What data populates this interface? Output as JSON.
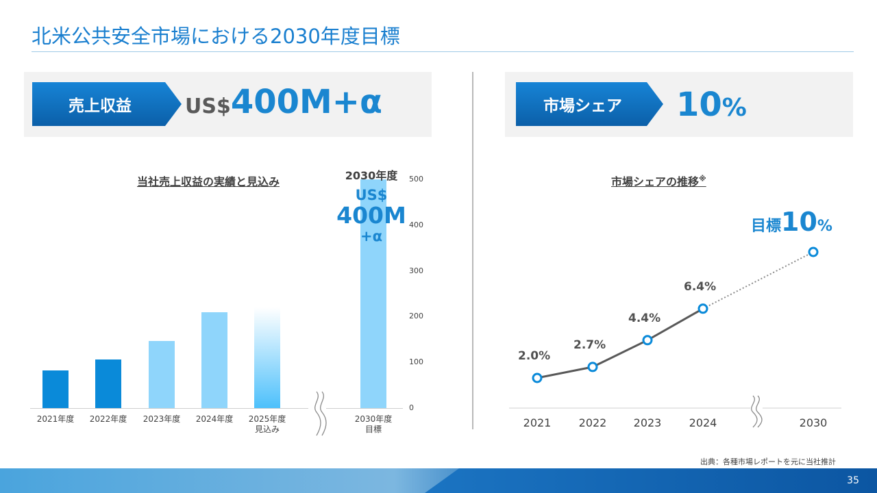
{
  "slide": {
    "title": "北米公共安全市場における2030年度目標",
    "page_number": "35",
    "source": "出典：各種市場レポートを元に当社推計"
  },
  "left_panel": {
    "label": "売上収益",
    "value_prefix": "US$",
    "value": "400M+α"
  },
  "right_panel": {
    "label": "市場シェア",
    "value": "10",
    "unit": "%"
  },
  "revenue_chart": {
    "title": "当社売上収益の実績と見込み",
    "callout_year": "2030年度",
    "callout_line1": "US$",
    "callout_line2": "400M",
    "callout_line3": "+α"
  },
  "share_chart": {
    "title": "市場シェアの推移",
    "title_mark": "※",
    "target_label": "目標",
    "target_value": "10",
    "target_unit": "%"
  },
  "chart_data": [
    {
      "type": "bar",
      "title": "当社売上収益の実績と見込み",
      "categories": [
        "2021年度",
        "2022年度",
        "2023年度",
        "2024年度",
        "2025年度\n見込み",
        "2030年度\n目標"
      ],
      "category_lines": [
        [
          "2021年度"
        ],
        [
          "2022年度"
        ],
        [
          "2023年度"
        ],
        [
          "2024年度"
        ],
        [
          "2025年度",
          "見込み"
        ],
        [
          "2030年度",
          "目標"
        ]
      ],
      "values": [
        82,
        106,
        147,
        210,
        220,
        500
      ],
      "ylim": [
        0,
        500
      ],
      "yticks": [
        "0",
        "100",
        "200",
        "300",
        "400",
        "500"
      ],
      "colors": [
        "#0a8ad9",
        "#0a8ad9",
        "#8fd5fb",
        "#8fd5fb",
        "gradient-#4dc0fb",
        "#8fd5fb"
      ],
      "axis_break_between": [
        "2025年度\n見込み",
        "2030年度\n目標"
      ]
    },
    {
      "type": "line",
      "title": "市場シェアの推移",
      "categories": [
        "2021",
        "2022",
        "2023",
        "2024",
        "2030"
      ],
      "values": [
        2.0,
        2.7,
        4.4,
        6.4,
        10
      ],
      "data_labels": [
        "2.0%",
        "2.7%",
        "4.4%",
        "6.4%",
        "目標10%"
      ],
      "unit": "%",
      "line_color": "#595959",
      "marker_color": "#0a8ad9",
      "projection": "dotted from 2024 to 2030",
      "axis_break_between": [
        "2024",
        "2030"
      ]
    }
  ]
}
